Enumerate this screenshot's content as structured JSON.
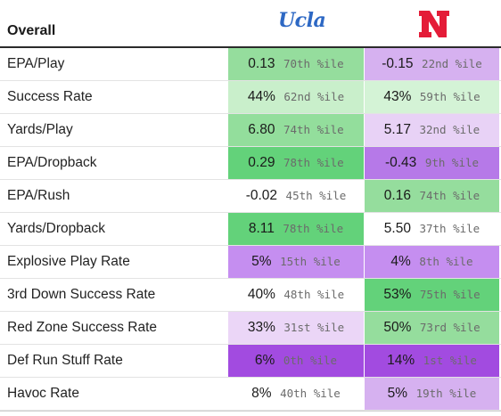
{
  "header": {
    "title": "Overall",
    "team1_logo_text": "Ucla",
    "team2_logo_text": "N",
    "team1_color": "#2d68c4",
    "team2_color": "#e41c38"
  },
  "rows": [
    {
      "label": "EPA/Play",
      "t1": {
        "value": "0.13",
        "pct": "70th %ile",
        "bg": "#95dd9d"
      },
      "t2": {
        "value": "-0.15",
        "pct": "22nd %ile",
        "bg": "#d6b1f0"
      }
    },
    {
      "label": "Success Rate",
      "t1": {
        "value": "44%",
        "pct": "62nd %ile",
        "bg": "#c9efcb"
      },
      "t2": {
        "value": "43%",
        "pct": "59th %ile",
        "bg": "#d4f3d6"
      }
    },
    {
      "label": "Yards/Play",
      "t1": {
        "value": "6.80",
        "pct": "74th %ile",
        "bg": "#93de9c"
      },
      "t2": {
        "value": "5.17",
        "pct": "32nd %ile",
        "bg": "#e8d2f6"
      }
    },
    {
      "label": "EPA/Dropback",
      "t1": {
        "value": "0.29",
        "pct": "78th %ile",
        "bg": "#63d27a"
      },
      "t2": {
        "value": "-0.43",
        "pct": "9th %ile",
        "bg": "#b679e8"
      }
    },
    {
      "label": "EPA/Rush",
      "t1": {
        "value": "-0.02",
        "pct": "45th %ile",
        "bg": "#ffffff"
      },
      "t2": {
        "value": "0.16",
        "pct": "74th %ile",
        "bg": "#95dd9d"
      }
    },
    {
      "label": "Yards/Dropback",
      "t1": {
        "value": "8.11",
        "pct": "78th %ile",
        "bg": "#63d27a"
      },
      "t2": {
        "value": "5.50",
        "pct": "37th %ile",
        "bg": "#ffffff"
      }
    },
    {
      "label": "Explosive Play Rate",
      "t1": {
        "value": "5%",
        "pct": "15th %ile",
        "bg": "#c58ef0"
      },
      "t2": {
        "value": "4%",
        "pct": "8th %ile",
        "bg": "#c58ef0"
      }
    },
    {
      "label": "3rd Down Success Rate",
      "t1": {
        "value": "40%",
        "pct": "48th %ile",
        "bg": "#ffffff"
      },
      "t2": {
        "value": "53%",
        "pct": "75th %ile",
        "bg": "#63d27a"
      }
    },
    {
      "label": "Red Zone Success Rate",
      "t1": {
        "value": "33%",
        "pct": "31st %ile",
        "bg": "#ebd6f7"
      },
      "t2": {
        "value": "50%",
        "pct": "73rd %ile",
        "bg": "#95dd9d"
      }
    },
    {
      "label": "Def Run Stuff Rate",
      "t1": {
        "value": "6%",
        "pct": "0th %ile",
        "bg": "#a24be0"
      },
      "t2": {
        "value": "14%",
        "pct": "1st %ile",
        "bg": "#a24be0"
      }
    },
    {
      "label": "Havoc Rate",
      "t1": {
        "value": "8%",
        "pct": "40th %ile",
        "bg": "#ffffff"
      },
      "t2": {
        "value": "5%",
        "pct": "19th %ile",
        "bg": "#d6b1f0"
      }
    }
  ]
}
